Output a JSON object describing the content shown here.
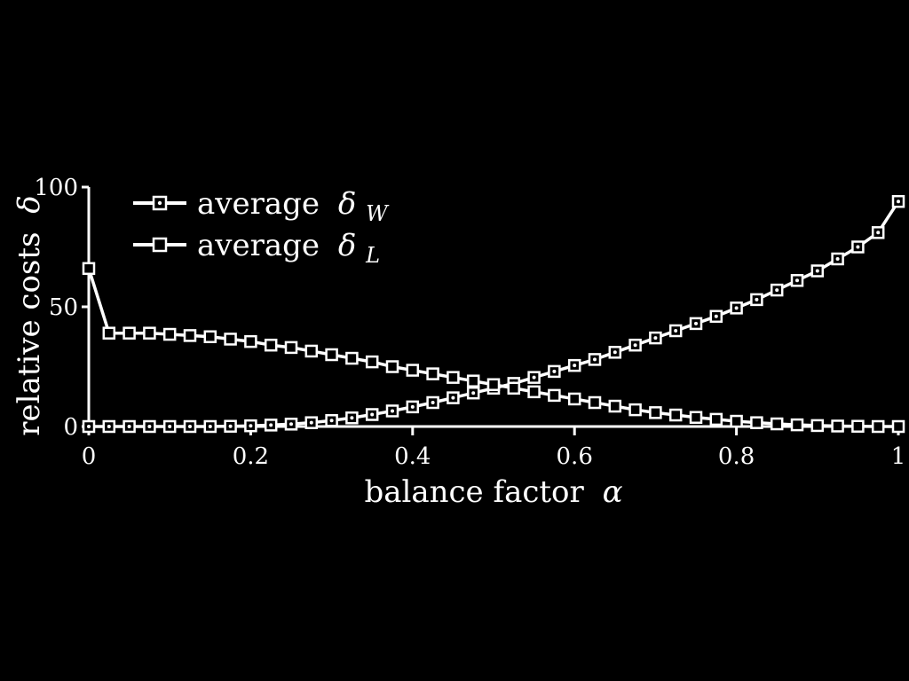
{
  "chart_data": {
    "type": "line",
    "xlabel": "balance factor",
    "xlabel_symbol": "α",
    "ylabel": "relative costs",
    "ylabel_symbol": "δ",
    "xlim": [
      0,
      1
    ],
    "ylim": [
      0,
      100
    ],
    "xticks": [
      "0",
      "0.2",
      "0.4",
      "0.6",
      "0.8",
      "1"
    ],
    "yticks": [
      "0",
      "50",
      "100"
    ],
    "legend_position": "top-left",
    "grid": false,
    "series": [
      {
        "name": "average",
        "name_symbol": "δ",
        "name_subscript": "W",
        "marker": "dot",
        "x": [
          0,
          0.025,
          0.05,
          0.075,
          0.1,
          0.125,
          0.15,
          0.175,
          0.2,
          0.225,
          0.25,
          0.275,
          0.3,
          0.325,
          0.35,
          0.375,
          0.4,
          0.425,
          0.45,
          0.475,
          0.5,
          0.525,
          0.55,
          0.575,
          0.6,
          0.625,
          0.65,
          0.675,
          0.7,
          0.725,
          0.75,
          0.775,
          0.8,
          0.825,
          0.85,
          0.875,
          0.9,
          0.925,
          0.95,
          0.975,
          1
        ],
        "y": [
          0,
          0,
          0,
          0,
          0,
          0,
          0,
          0.1,
          0.3,
          0.6,
          1,
          1.6,
          2.5,
          3.6,
          5,
          6.5,
          8.2,
          10,
          12,
          14,
          16,
          18,
          20.5,
          23,
          25.5,
          28,
          31,
          34,
          37,
          40,
          43,
          46,
          49.5,
          53,
          57,
          61,
          65,
          70,
          75,
          81,
          94
        ]
      },
      {
        "name": "average",
        "name_symbol": "δ",
        "name_subscript": "L",
        "marker": "square",
        "x": [
          0,
          0.025,
          0.05,
          0.075,
          0.1,
          0.125,
          0.15,
          0.175,
          0.2,
          0.225,
          0.25,
          0.275,
          0.3,
          0.325,
          0.35,
          0.375,
          0.4,
          0.425,
          0.45,
          0.475,
          0.5,
          0.525,
          0.55,
          0.575,
          0.6,
          0.625,
          0.65,
          0.675,
          0.7,
          0.725,
          0.75,
          0.775,
          0.8,
          0.825,
          0.85,
          0.875,
          0.9,
          0.925,
          0.95,
          0.975,
          1
        ],
        "y": [
          66,
          39,
          39,
          39,
          38.5,
          38,
          37.5,
          36.5,
          35.5,
          34,
          33,
          31.5,
          30,
          28.5,
          27,
          25,
          23.5,
          22,
          20.5,
          19,
          17.5,
          16,
          14.5,
          13,
          11.5,
          10,
          8.5,
          7,
          5.8,
          4.8,
          3.8,
          3,
          2.2,
          1.6,
          1.1,
          0.7,
          0.4,
          0.2,
          0.1,
          0,
          0
        ]
      }
    ]
  }
}
